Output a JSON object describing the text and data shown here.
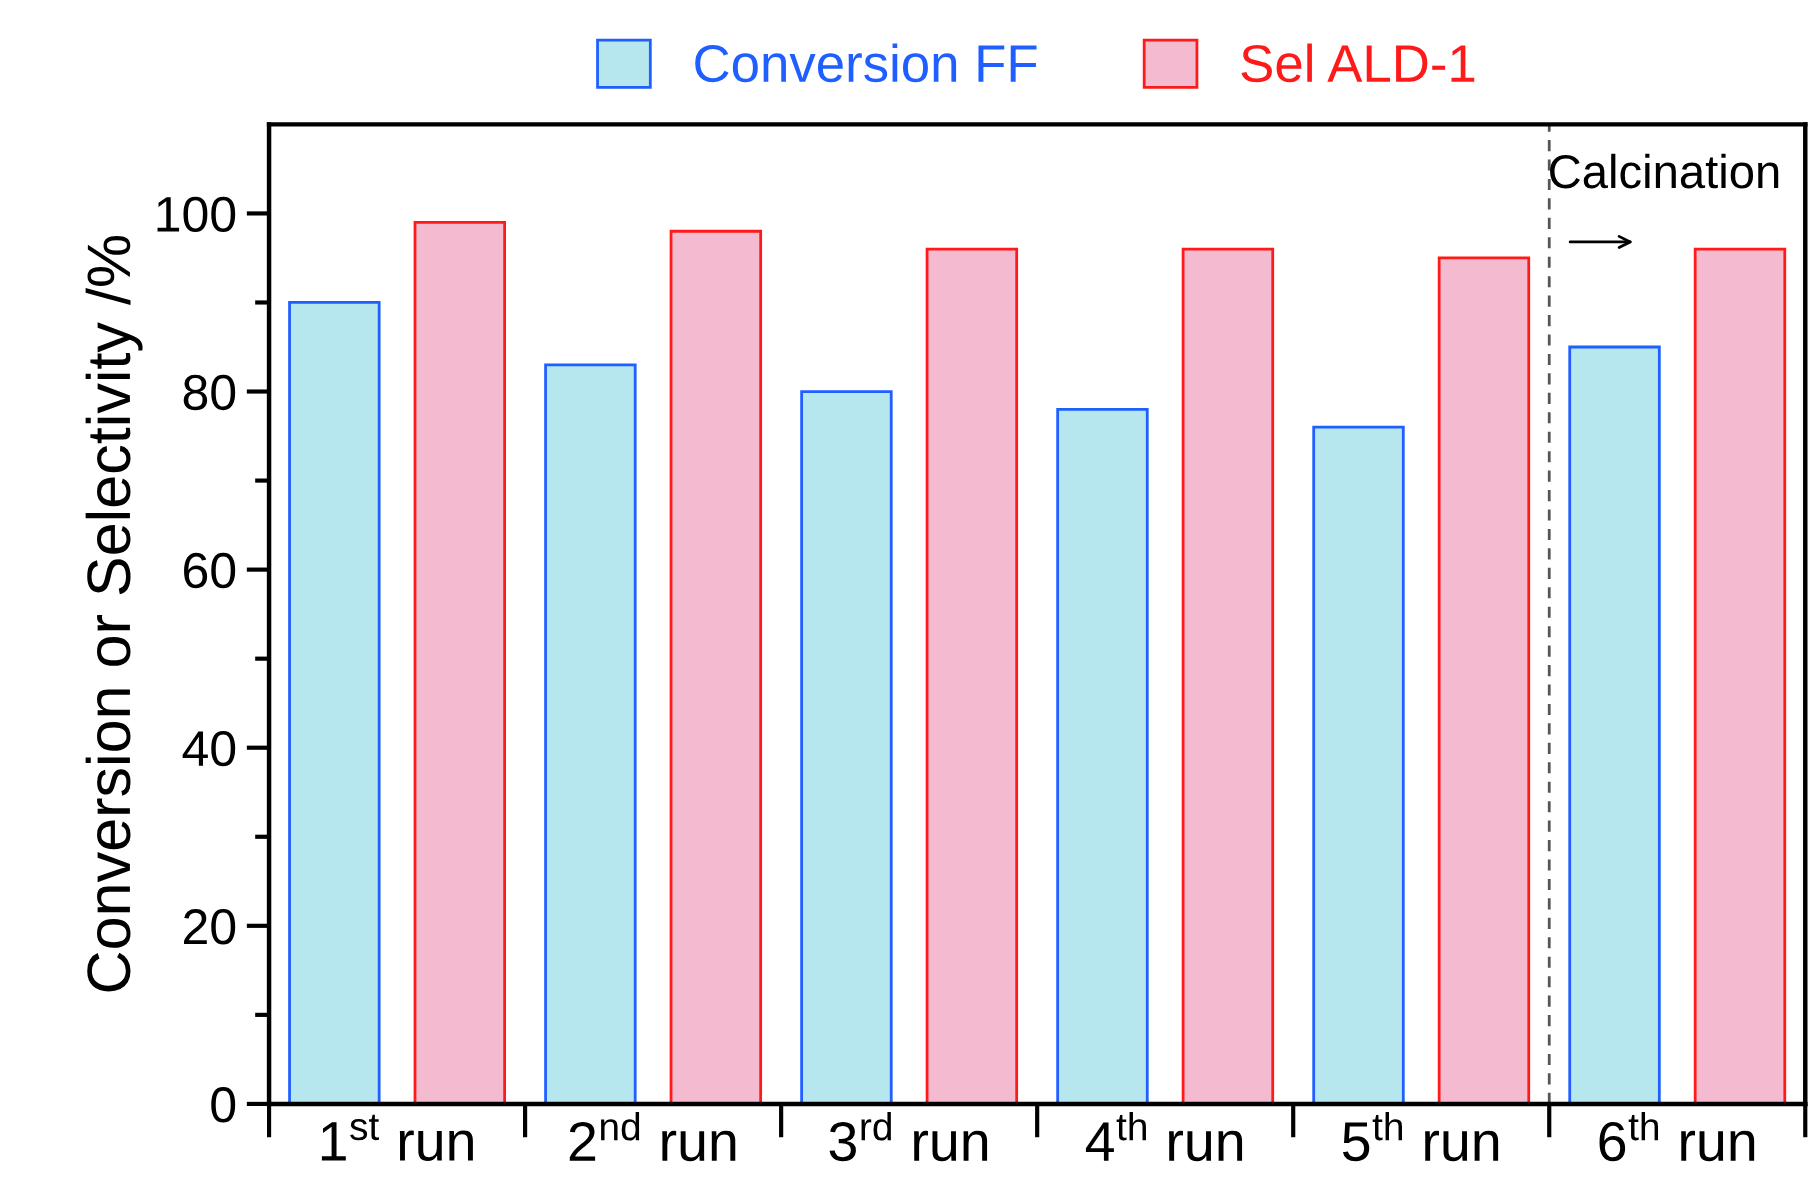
{
  "chart_data": {
    "type": "bar",
    "ylabel": "Conversion or Selectivity /%",
    "categories": [
      "1$^{st}$ run",
      "2$^{nd}$ run",
      "3$^{rd}$ run",
      "4$^{th}$ run",
      "5$^{th}$ run",
      "6$^{th}$ run"
    ],
    "series": [
      {
        "name": "Conversion FF",
        "color": "#b6e6ee",
        "values": [
          90,
          83,
          80,
          78,
          76,
          85
        ]
      },
      {
        "name": "Sel ALD-1",
        "color": "#f4bbd0",
        "values": [
          99,
          98,
          96,
          96,
          95,
          96
        ]
      }
    ],
    "ylim": [
      0,
      110
    ],
    "yticks": [
      0,
      20,
      40,
      60,
      80,
      100
    ],
    "annotations": [
      "Calcination"
    ],
    "grid": false,
    "legend": "top"
  }
}
